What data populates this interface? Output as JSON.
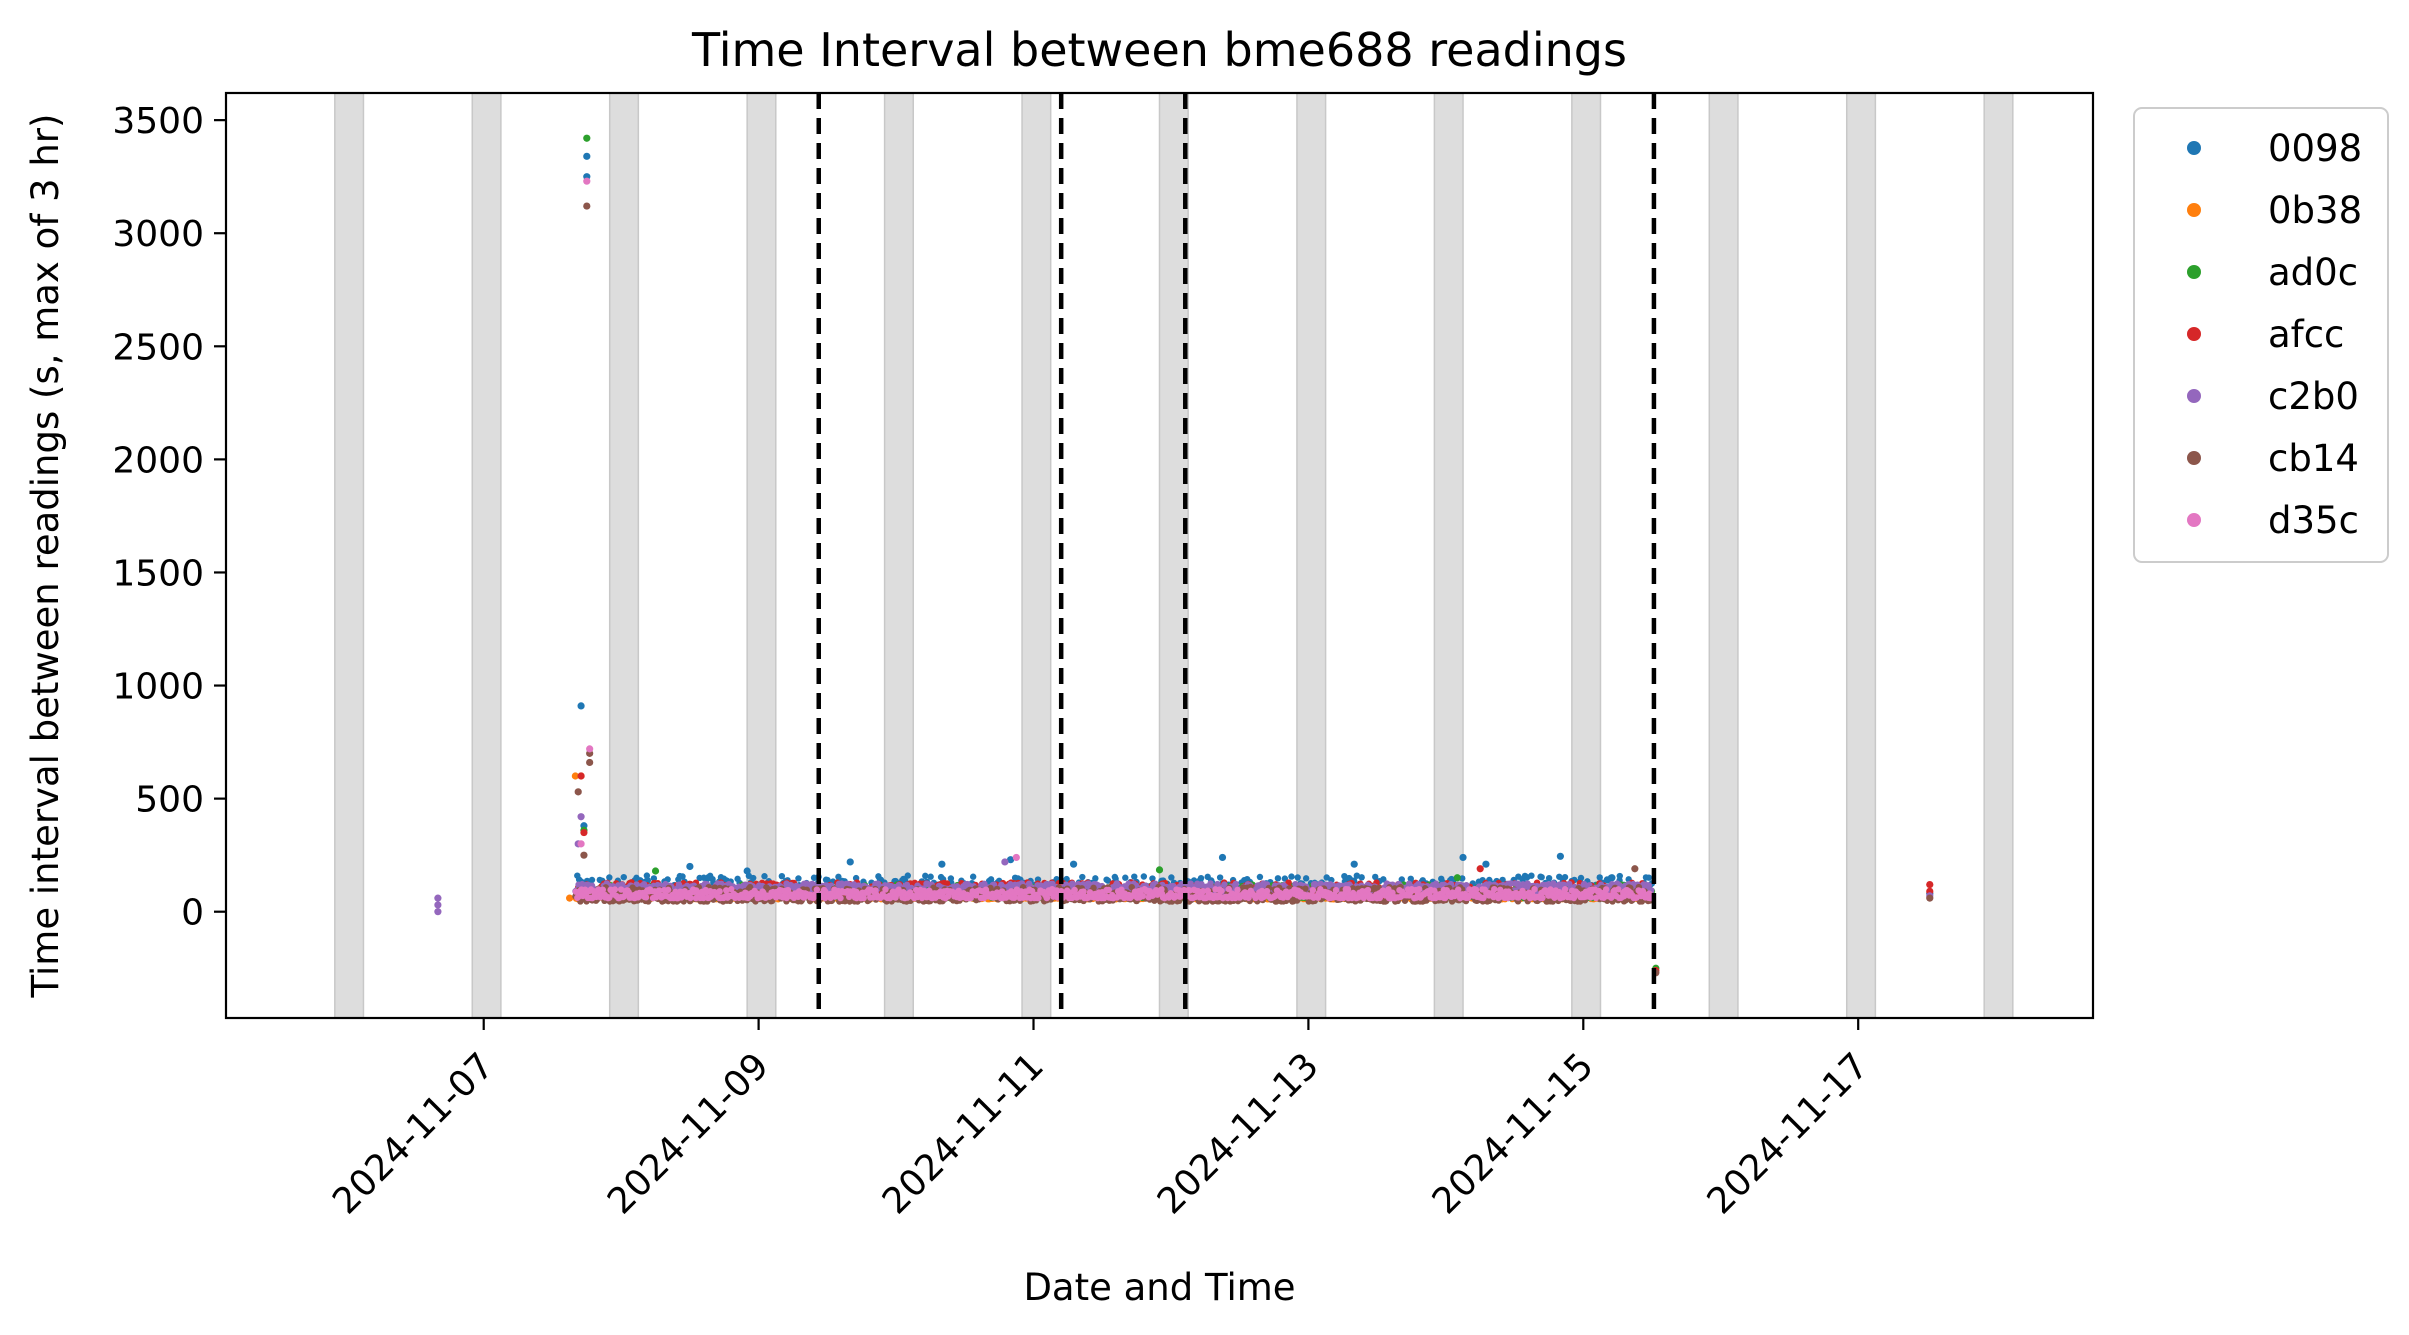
{
  "chart_data": {
    "type": "scatter",
    "title": "Time Interval between bme688 readings",
    "xlabel": "Date and Time",
    "ylabel": "Time interval between readings (s, max of 3 hr)",
    "xlim": [
      "2024-11-05 03:00",
      "2024-11-18 17:00"
    ],
    "ylim": [
      -470,
      3620
    ],
    "x_ticks": [
      "2024-11-07",
      "2024-11-09",
      "2024-11-11",
      "2024-11-13",
      "2024-11-15",
      "2024-11-17"
    ],
    "y_ticks": [
      0,
      500,
      1000,
      1500,
      2000,
      2500,
      3000,
      3500
    ],
    "grid": false,
    "legend_position": "outside-right",
    "shaded_night_periods": [
      [
        "2024-11-05 22:00",
        "2024-11-06 03:00"
      ],
      [
        "2024-11-06 22:00",
        "2024-11-07 03:00"
      ],
      [
        "2024-11-07 22:00",
        "2024-11-08 03:00"
      ],
      [
        "2024-11-08 22:00",
        "2024-11-09 03:00"
      ],
      [
        "2024-11-09 22:00",
        "2024-11-10 03:00"
      ],
      [
        "2024-11-10 22:00",
        "2024-11-11 03:00"
      ],
      [
        "2024-11-11 22:00",
        "2024-11-12 03:00"
      ],
      [
        "2024-11-12 22:00",
        "2024-11-13 03:00"
      ],
      [
        "2024-11-13 22:00",
        "2024-11-14 03:00"
      ],
      [
        "2024-11-14 22:00",
        "2024-11-15 03:00"
      ],
      [
        "2024-11-15 22:00",
        "2024-11-16 03:00"
      ],
      [
        "2024-11-16 22:00",
        "2024-11-17 03:00"
      ],
      [
        "2024-11-17 22:00",
        "2024-11-18 03:00"
      ]
    ],
    "vertical_markers": [
      "2024-11-09 10:30",
      "2024-11-11 04:50",
      "2024-11-12 02:30",
      "2024-11-15 12:20"
    ],
    "series": [
      {
        "name": "0098",
        "color": "#1f77b4",
        "points": [
          [
            "2024-11-07 17:00",
            910
          ],
          [
            "2024-11-07 18:00",
            3340
          ],
          [
            "2024-11-07 18:00",
            3250
          ],
          [
            "2024-11-07 17:30",
            380
          ],
          [
            "2024-11-08 12:00",
            200
          ],
          [
            "2024-11-08 22:00",
            180
          ],
          [
            "2024-11-09 16:00",
            220
          ],
          [
            "2024-11-10 08:00",
            210
          ],
          [
            "2024-11-10 20:00",
            230
          ],
          [
            "2024-11-11 07:00",
            210
          ],
          [
            "2024-11-12 09:00",
            240
          ],
          [
            "2024-11-13 08:00",
            210
          ],
          [
            "2024-11-14 03:00",
            240
          ],
          [
            "2024-11-14 07:00",
            210
          ],
          [
            "2024-11-14 20:00",
            245
          ],
          [
            "2024-11-15 05:00",
            150
          ],
          [
            "2024-11-17 12:30",
            80
          ]
        ],
        "bands": [
          [
            "2024-11-07 16:00",
            "2024-11-15 12:00",
            60,
            160
          ]
        ]
      },
      {
        "name": "0b38",
        "color": "#ff7f0e",
        "points": [
          [
            "2024-11-07 16:00",
            600
          ],
          [
            "2024-11-07 17:00",
            600
          ],
          [
            "2024-11-07 15:00",
            60
          ]
        ],
        "bands": [
          [
            "2024-11-07 16:00",
            "2024-11-15 12:00",
            55,
            80
          ]
        ]
      },
      {
        "name": "ad0c",
        "color": "#2ca02c",
        "points": [
          [
            "2024-11-07 18:00",
            3420
          ],
          [
            "2024-11-07 17:30",
            360
          ],
          [
            "2024-11-08 06:00",
            180
          ],
          [
            "2024-11-11 22:00",
            185
          ],
          [
            "2024-11-14 02:00",
            150
          ],
          [
            "2024-11-15 12:40",
            -250
          ]
        ],
        "bands": [
          [
            "2024-11-07 16:00",
            "2024-11-15 12:00",
            60,
            120
          ]
        ]
      },
      {
        "name": "afcc",
        "color": "#d62728",
        "points": [
          [
            "2024-11-07 17:00",
            600
          ],
          [
            "2024-11-07 17:30",
            350
          ],
          [
            "2024-11-14 06:00",
            190
          ],
          [
            "2024-11-15 12:40",
            -260
          ],
          [
            "2024-11-17 12:30",
            120
          ],
          [
            "2024-11-17 12:30",
            90
          ]
        ],
        "bands": [
          [
            "2024-11-07 16:00",
            "2024-11-15 12:00",
            70,
            130
          ]
        ]
      },
      {
        "name": "c2b0",
        "color": "#9467bd",
        "points": [
          [
            "2024-11-06 16:00",
            60
          ],
          [
            "2024-11-06 16:00",
            30
          ],
          [
            "2024-11-06 16:00",
            0
          ],
          [
            "2024-11-07 17:00",
            420
          ],
          [
            "2024-11-07 16:30",
            300
          ],
          [
            "2024-11-10 19:00",
            220
          ],
          [
            "2024-11-17 12:30",
            70
          ]
        ],
        "bands": [
          [
            "2024-11-07 16:00",
            "2024-11-15 12:00",
            90,
            125
          ]
        ]
      },
      {
        "name": "cb14",
        "color": "#8c564b",
        "points": [
          [
            "2024-11-07 18:00",
            3120
          ],
          [
            "2024-11-07 18:30",
            700
          ],
          [
            "2024-11-07 18:30",
            660
          ],
          [
            "2024-11-07 16:30",
            530
          ],
          [
            "2024-11-07 17:30",
            250
          ],
          [
            "2024-11-15 09:00",
            190
          ],
          [
            "2024-11-15 12:40",
            -270
          ],
          [
            "2024-11-17 12:30",
            60
          ]
        ],
        "bands": [
          [
            "2024-11-07 16:00",
            "2024-11-15 12:00",
            45,
            110
          ]
        ]
      },
      {
        "name": "d35c",
        "color": "#e377c2",
        "points": [
          [
            "2024-11-07 18:00",
            3230
          ],
          [
            "2024-11-07 18:30",
            720
          ],
          [
            "2024-11-07 17:00",
            300
          ],
          [
            "2024-11-10 21:00",
            240
          ]
        ],
        "bands": [
          [
            "2024-11-07 16:00",
            "2024-11-15 12:00",
            60,
            100
          ]
        ]
      }
    ]
  }
}
